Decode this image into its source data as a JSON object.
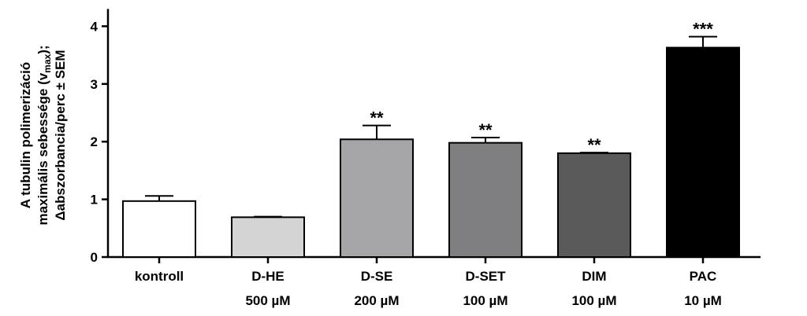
{
  "chart_data": {
    "type": "bar",
    "categories": [
      "kontroll",
      "D-HE",
      "D-SE",
      "D-SET",
      "DIM",
      "PAC"
    ],
    "concentrations": [
      "",
      "500 µM",
      "200 µM",
      "100 µM",
      "100 µM",
      "10 µM"
    ],
    "values": [
      0.97,
      0.69,
      2.04,
      1.98,
      1.8,
      3.63
    ],
    "errors": [
      0.09,
      0.01,
      0.24,
      0.09,
      0.01,
      0.19
    ],
    "significance": [
      "",
      "",
      "**",
      "**",
      "**",
      "***"
    ],
    "bar_colors": [
      "#ffffff",
      "#d4d4d4",
      "#a6a6a8",
      "#7f7f81",
      "#5a5a5a",
      "#000000"
    ],
    "ylim": [
      0,
      4.3
    ],
    "yticks": [
      0,
      1,
      2,
      3,
      4
    ],
    "ylabel_lines": [
      "A tubulin polimerizáció",
      "maximális sebessége (v",
      "max",
      "Δabszorbancia/perc ± SEM"
    ],
    "ylabel_close": ");",
    "grid": false
  }
}
